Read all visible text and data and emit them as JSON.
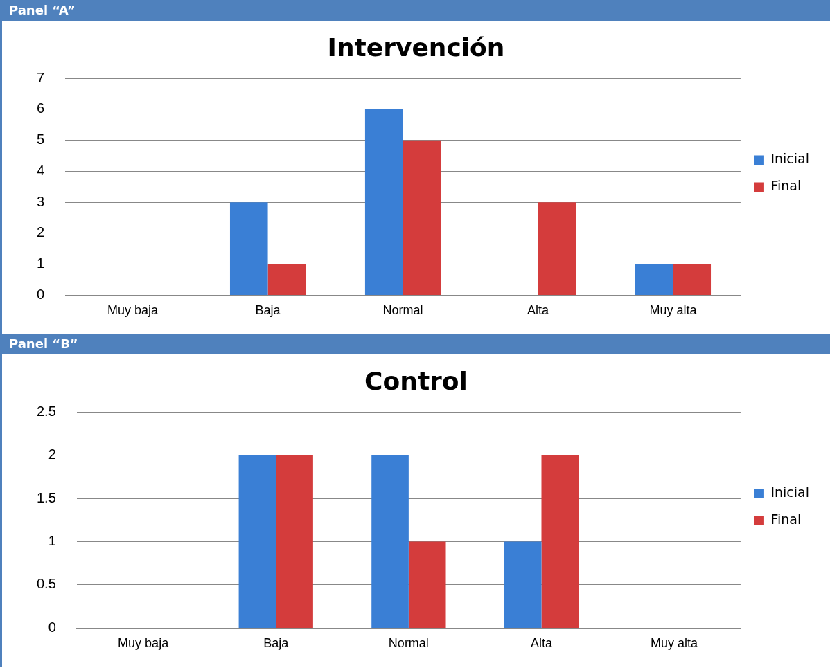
{
  "chart_data": [
    {
      "type": "bar",
      "title": "Intervención",
      "annotations": [
        "Panel “A”"
      ],
      "categories": [
        "Muy baja",
        "Baja",
        "Normal",
        "Alta",
        "Muy alta"
      ],
      "series": [
        {
          "name": "Inicial",
          "color": "#3a7fd5",
          "values": [
            0,
            3,
            6,
            0,
            1
          ]
        },
        {
          "name": "Final",
          "color": "#d43c3c",
          "values": [
            0,
            1,
            5,
            3,
            1
          ]
        }
      ],
      "ylim": [
        0,
        7
      ],
      "yticks": [
        0,
        1,
        2,
        3,
        4,
        5,
        6,
        7
      ],
      "grid": "y",
      "legend": "right"
    },
    {
      "type": "bar",
      "title": "Control",
      "annotations": [
        "Panel “B”"
      ],
      "categories": [
        "Muy baja",
        "Baja",
        "Normal",
        "Alta",
        "Muy alta"
      ],
      "series": [
        {
          "name": "Inicial",
          "color": "#3a7fd5",
          "values": [
            0,
            2,
            2,
            1,
            0
          ]
        },
        {
          "name": "Final",
          "color": "#d43c3c",
          "values": [
            0,
            2,
            1,
            2,
            0
          ]
        }
      ],
      "ylim": [
        0,
        2.5
      ],
      "yticks": [
        0,
        0.5,
        1,
        1.5,
        2,
        2.5
      ],
      "grid": "y",
      "legend": "right"
    }
  ]
}
